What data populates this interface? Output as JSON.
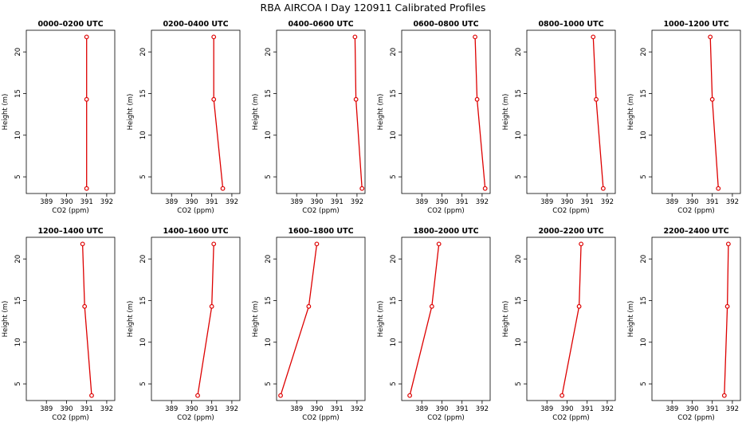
{
  "page_title": "RBA AIRCOA I  Day 120911  Calibrated Profiles",
  "colors": {
    "line": "#dd0000",
    "axis": "#000000",
    "background": "#ffffff"
  },
  "chart_data": [
    {
      "type": "line",
      "title": "0000–0200 UTC",
      "xlabel": "CO2 (ppm)",
      "ylabel": "Height (m)",
      "xlim": [
        388.0,
        392.4
      ],
      "ylim": [
        3,
        22.6
      ],
      "xticks": [
        389,
        390,
        391,
        392
      ],
      "yticks": [
        5,
        10,
        15,
        20
      ],
      "grid": false,
      "series": [
        {
          "x": [
            391.0,
            391.0,
            391.0
          ],
          "y": [
            3.6,
            14.3,
            21.8
          ]
        }
      ]
    },
    {
      "type": "line",
      "title": "0200–0400 UTC",
      "xlabel": "CO2 (ppm)",
      "ylabel": "Height (m)",
      "xlim": [
        388.0,
        392.4
      ],
      "ylim": [
        3,
        22.6
      ],
      "xticks": [
        389,
        390,
        391,
        392
      ],
      "yticks": [
        5,
        10,
        15,
        20
      ],
      "grid": false,
      "series": [
        {
          "x": [
            391.55,
            391.1,
            391.1
          ],
          "y": [
            3.6,
            14.3,
            21.8
          ]
        }
      ]
    },
    {
      "type": "line",
      "title": "0400–0600 UTC",
      "xlabel": "CO2 (ppm)",
      "ylabel": "Height (m)",
      "xlim": [
        388.0,
        392.4
      ],
      "ylim": [
        3,
        22.6
      ],
      "xticks": [
        389,
        390,
        391,
        392
      ],
      "yticks": [
        5,
        10,
        15,
        20
      ],
      "grid": false,
      "series": [
        {
          "x": [
            392.25,
            391.95,
            391.9
          ],
          "y": [
            3.6,
            14.3,
            21.8
          ]
        }
      ]
    },
    {
      "type": "line",
      "title": "0600–0800 UTC",
      "xlabel": "CO2 (ppm)",
      "ylabel": "Height (m)",
      "xlim": [
        388.0,
        392.4
      ],
      "ylim": [
        3,
        22.6
      ],
      "xticks": [
        389,
        390,
        391,
        392
      ],
      "yticks": [
        5,
        10,
        15,
        20
      ],
      "grid": false,
      "series": [
        {
          "x": [
            392.15,
            391.75,
            391.65
          ],
          "y": [
            3.6,
            14.3,
            21.8
          ]
        }
      ]
    },
    {
      "type": "line",
      "title": "0800–1000 UTC",
      "xlabel": "CO2 (ppm)",
      "ylabel": "Height (m)",
      "xlim": [
        388.0,
        392.4
      ],
      "ylim": [
        3,
        22.6
      ],
      "xticks": [
        389,
        390,
        391,
        392
      ],
      "yticks": [
        5,
        10,
        15,
        20
      ],
      "grid": false,
      "series": [
        {
          "x": [
            391.8,
            391.45,
            391.3
          ],
          "y": [
            3.6,
            14.3,
            21.8
          ]
        }
      ]
    },
    {
      "type": "line",
      "title": "1000–1200 UTC",
      "xlabel": "CO2 (ppm)",
      "ylabel": "Height (m)",
      "xlim": [
        388.0,
        392.4
      ],
      "ylim": [
        3,
        22.6
      ],
      "xticks": [
        389,
        390,
        391,
        392
      ],
      "yticks": [
        5,
        10,
        15,
        20
      ],
      "grid": false,
      "series": [
        {
          "x": [
            391.3,
            391.0,
            390.9
          ],
          "y": [
            3.6,
            14.3,
            21.8
          ]
        }
      ]
    },
    {
      "type": "line",
      "title": "1200–1400 UTC",
      "xlabel": "CO2 (ppm)",
      "ylabel": "Height (m)",
      "xlim": [
        388.0,
        392.4
      ],
      "ylim": [
        3,
        22.6
      ],
      "xticks": [
        389,
        390,
        391,
        392
      ],
      "yticks": [
        5,
        10,
        15,
        20
      ],
      "grid": false,
      "series": [
        {
          "x": [
            391.25,
            390.9,
            390.8
          ],
          "y": [
            3.6,
            14.3,
            21.8
          ]
        }
      ]
    },
    {
      "type": "line",
      "title": "1400–1600 UTC",
      "xlabel": "CO2 (ppm)",
      "ylabel": "Height (m)",
      "xlim": [
        388.0,
        392.4
      ],
      "ylim": [
        3,
        22.6
      ],
      "xticks": [
        389,
        390,
        391,
        392
      ],
      "yticks": [
        5,
        10,
        15,
        20
      ],
      "grid": false,
      "series": [
        {
          "x": [
            390.3,
            391.0,
            391.1
          ],
          "y": [
            3.6,
            14.3,
            21.8
          ]
        }
      ]
    },
    {
      "type": "line",
      "title": "1600–1800 UTC",
      "xlabel": "CO2 (ppm)",
      "ylabel": "Height (m)",
      "xlim": [
        388.0,
        392.4
      ],
      "ylim": [
        3,
        22.6
      ],
      "xticks": [
        389,
        390,
        391,
        392
      ],
      "yticks": [
        5,
        10,
        15,
        20
      ],
      "grid": false,
      "series": [
        {
          "x": [
            388.2,
            389.6,
            390.0
          ],
          "y": [
            3.6,
            14.3,
            21.8
          ]
        }
      ]
    },
    {
      "type": "line",
      "title": "1800–2000 UTC",
      "xlabel": "CO2 (ppm)",
      "ylabel": "Height (m)",
      "xlim": [
        388.0,
        392.4
      ],
      "ylim": [
        3,
        22.6
      ],
      "xticks": [
        389,
        390,
        391,
        392
      ],
      "yticks": [
        5,
        10,
        15,
        20
      ],
      "grid": false,
      "series": [
        {
          "x": [
            388.4,
            389.5,
            389.85
          ],
          "y": [
            3.6,
            14.3,
            21.8
          ]
        }
      ]
    },
    {
      "type": "line",
      "title": "2000–2200 UTC",
      "xlabel": "CO2 (ppm)",
      "ylabel": "Height (m)",
      "xlim": [
        388.0,
        392.4
      ],
      "ylim": [
        3,
        22.6
      ],
      "xticks": [
        389,
        390,
        391,
        392
      ],
      "yticks": [
        5,
        10,
        15,
        20
      ],
      "grid": false,
      "series": [
        {
          "x": [
            389.75,
            390.6,
            390.7
          ],
          "y": [
            3.6,
            14.3,
            21.8
          ]
        }
      ]
    },
    {
      "type": "line",
      "title": "2200–2400 UTC",
      "xlabel": "CO2 (ppm)",
      "ylabel": "Height (m)",
      "xlim": [
        388.0,
        392.4
      ],
      "ylim": [
        3,
        22.6
      ],
      "xticks": [
        389,
        390,
        391,
        392
      ],
      "yticks": [
        5,
        10,
        15,
        20
      ],
      "grid": false,
      "series": [
        {
          "x": [
            391.6,
            391.75,
            391.8
          ],
          "y": [
            3.6,
            14.3,
            21.8
          ]
        }
      ]
    }
  ]
}
